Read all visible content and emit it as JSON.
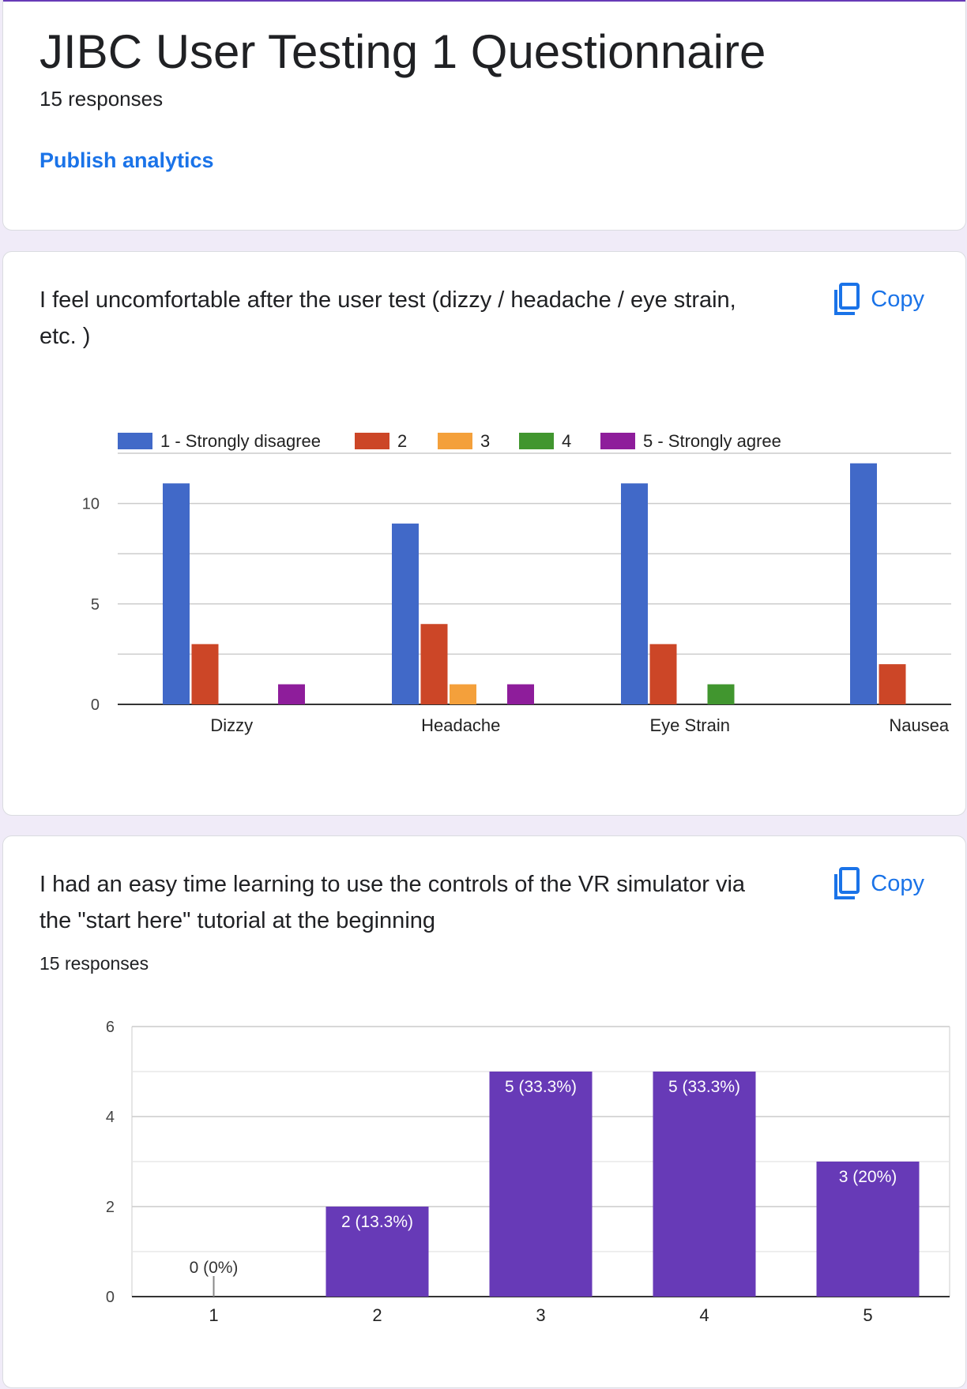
{
  "form": {
    "title": "JIBC User Testing 1 Questionnaire",
    "responses": "15 responses",
    "publish_link": "Publish analytics",
    "accent_color": "#673ab7",
    "link_color": "#1a73e8"
  },
  "questions": [
    {
      "title": "I feel uncomfortable after the user test (dizzy / headache / eye strain, etc. )",
      "copy_label": "Copy",
      "copy_icon": "copy-icon"
    },
    {
      "title": "I had an easy time learning to use the controls of the VR simulator via the \"start here\" tutorial at the beginning",
      "copy_label": "Copy",
      "copy_icon": "copy-icon",
      "responses": "15 responses"
    }
  ],
  "chart_data": [
    {
      "type": "bar",
      "categories": [
        "Dizzy",
        "Headache",
        "Eye Strain",
        "Nausea"
      ],
      "series": [
        {
          "name": "1 - Strongly disagree",
          "color": "#4169c8",
          "values": [
            11,
            9,
            11,
            12
          ]
        },
        {
          "name": "2",
          "color": "#cc4627",
          "values": [
            3,
            4,
            3,
            2
          ]
        },
        {
          "name": "3",
          "color": "#f4a03b",
          "values": [
            0,
            1,
            0,
            0
          ]
        },
        {
          "name": "4",
          "color": "#41962f",
          "values": [
            0,
            0,
            1,
            0
          ]
        },
        {
          "name": "5 - Strongly agree",
          "color": "#8e1d9b",
          "values": [
            1,
            1,
            0,
            0
          ]
        }
      ],
      "y_ticks": [
        "0",
        "5",
        "10"
      ],
      "ylim": [
        0,
        12.5
      ],
      "legend_position": "top",
      "grid": true
    },
    {
      "type": "bar",
      "categories": [
        "1",
        "2",
        "3",
        "4",
        "5"
      ],
      "values": [
        0,
        2,
        5,
        5,
        3
      ],
      "data_labels": [
        "0 (0%)",
        "2 (13.3%)",
        "5 (33.3%)",
        "5 (33.3%)",
        "3 (20%)"
      ],
      "y_ticks": [
        "0",
        "2",
        "4",
        "6"
      ],
      "ylim": [
        0,
        6
      ],
      "bar_color": "#673ab7",
      "grid": true
    }
  ]
}
